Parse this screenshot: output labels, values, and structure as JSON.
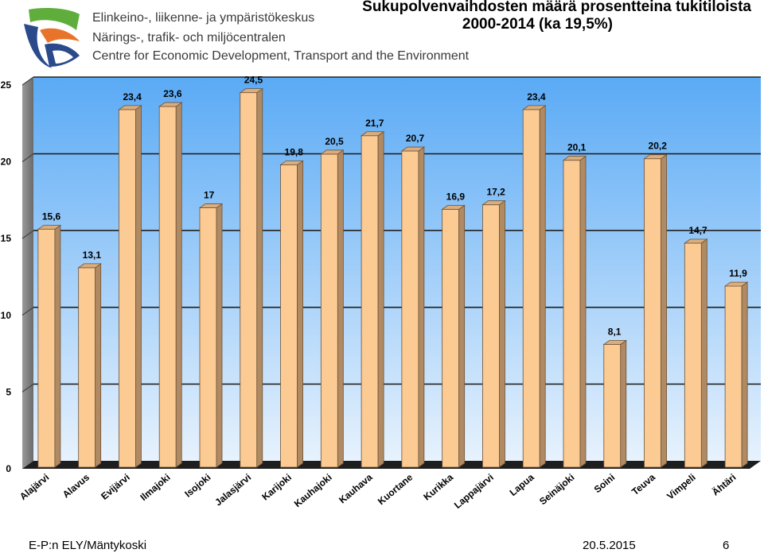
{
  "header": {
    "org_lines": [
      "Elinkeino-, liikenne- ja ympäristökeskus",
      "Närings-, trafik- och miljöcentralen",
      "Centre for Economic Development, Transport and the Environment"
    ],
    "title_line1": "Sukupolvenvaihdosten määrä prosentteina tukitiloista",
    "title_line2": "2000-2014  (ka 19,5%)"
  },
  "footer": {
    "author": "E-P:n ELY/Mäntykoski",
    "date": "20.5.2015",
    "page": "6"
  },
  "colors": {
    "bar_front": "#fccb94",
    "bar_side": "#b08a63",
    "bar_top": "#d9ad7e",
    "plot_bg_top": "#5aaaf5",
    "plot_bg_bottom": "#e7f2fd",
    "floor": "#1e1e1e"
  },
  "chart_data": {
    "type": "bar",
    "title": "Sukupolvenvaihdosten määrä prosentteina tukitiloista 2000-2014  (ka 19,5%)",
    "categories": [
      "Alajärvi",
      "Alavus",
      "Evijärvi",
      "Ilmajoki",
      "Isojoki",
      "Jalasjärvi",
      "Karijoki",
      "Kauhajoki",
      "Kauhava",
      "Kuortane",
      "Kurikka",
      "Lappajärvi",
      "Lapua",
      "Seinäjoki",
      "Soini",
      "Teuva",
      "Vimpeli",
      "Ähtäri"
    ],
    "values": [
      15.6,
      13.1,
      23.4,
      23.6,
      17,
      24.5,
      19.8,
      20.5,
      21.7,
      20.7,
      16.9,
      17.2,
      23.4,
      20.1,
      8.1,
      20.2,
      14.7,
      11.9
    ],
    "value_labels": [
      "15,6",
      "13,1",
      "23,4",
      "23,6",
      "17",
      "24,5",
      "19,8",
      "20,5",
      "21,7",
      "20,7",
      "16,9",
      "17,2",
      "23,4",
      "20,1",
      "8,1",
      "20,2",
      "14,7",
      "11,9"
    ],
    "ylim": [
      0,
      25
    ],
    "yticks": [
      "0",
      "5",
      "10",
      "15",
      "20",
      "25"
    ],
    "grid": true,
    "xlabel": "",
    "ylabel": ""
  }
}
